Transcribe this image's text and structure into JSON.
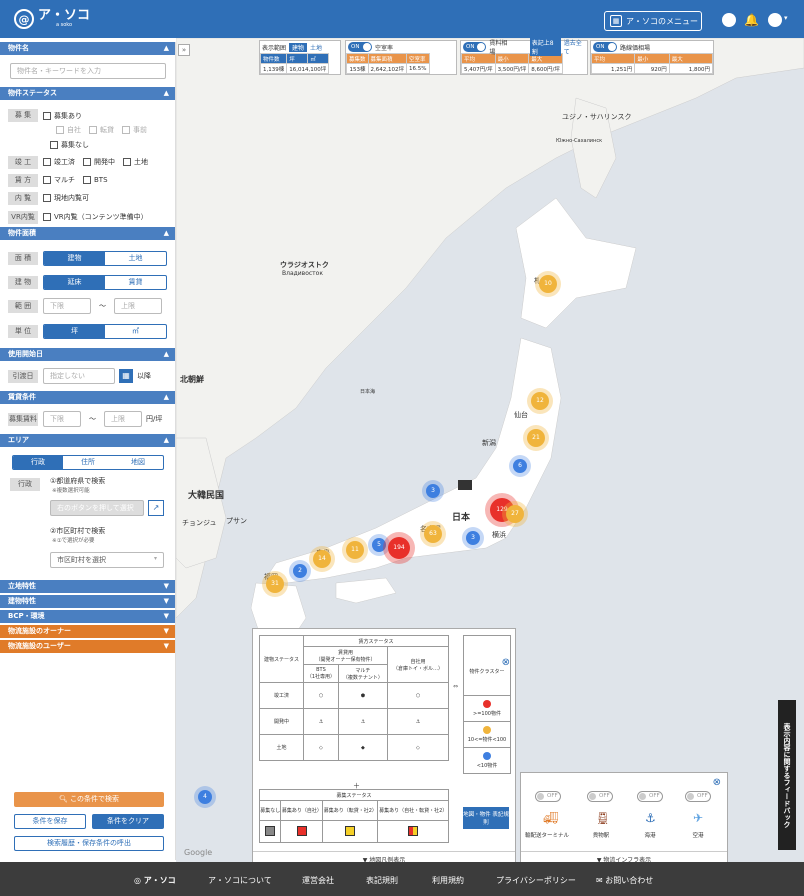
{
  "header": {
    "logo_mark": "@",
    "logo_text": "ア・ソコ",
    "logo_sub": "a soko",
    "menu_button": "ア・ソコのメニュー"
  },
  "sidebar": {
    "property_name": {
      "title": "物件名",
      "placeholder": "物件名・キーワードを入力"
    },
    "status": {
      "title": "物件ステータス",
      "recruit": {
        "label": "募 集",
        "option": "募集あり",
        "sub": [
          "自社",
          "転貸",
          "事前"
        ],
        "none": "募集なし"
      },
      "construction": {
        "label": "竣 工",
        "options": [
          "竣工済",
          "開発中",
          "土地"
        ]
      },
      "lease": {
        "label": "賃 方",
        "options": [
          "マルチ",
          "BTS"
        ]
      },
      "preview": {
        "label": "内 覧",
        "option": "現地内覧可"
      },
      "vr": {
        "label": "VR内覧",
        "option": "VR内覧（コンテンツ準備中）"
      }
    },
    "area_size": {
      "title": "物件面積",
      "area": {
        "label": "面 積",
        "options": [
          "建物",
          "土地"
        ]
      },
      "building": {
        "label": "建 物",
        "options": [
          "延床",
          "賃貸"
        ]
      },
      "range": {
        "label": "範 囲",
        "min": "下限",
        "max": "上限",
        "sep": "〜"
      },
      "unit": {
        "label": "単 位",
        "options": [
          "坪",
          "㎡"
        ]
      }
    },
    "date": {
      "title": "使用開始日",
      "label": "引渡日",
      "placeholder": "指定しない",
      "suffix": "以降"
    },
    "price": {
      "title": "賃貸条件",
      "label": "募集賃料",
      "min": "下限",
      "max": "上限",
      "sep": "〜",
      "unit": "円/坪"
    },
    "area": {
      "title": "エリア",
      "tabs": [
        "行政",
        "住所",
        "地図"
      ],
      "label": "行政",
      "pref": {
        "title": "①都道府県で検索",
        "note": "※複数選択可能",
        "button": "右のボタンを押して選択"
      },
      "city": {
        "title": "②市区町村で検索",
        "note": "※①で選択が必要",
        "placeholder": "市区町村を選択"
      }
    },
    "collapsed": [
      {
        "title": "立地特性",
        "color": "blue"
      },
      {
        "title": "建物特性",
        "color": "blue"
      },
      {
        "title": "BCP・環境",
        "color": "blue"
      },
      {
        "title": "物流施設のオーナー",
        "color": "orange"
      },
      {
        "title": "物流施設のユーザー",
        "color": "orange"
      }
    ],
    "buttons": {
      "search": "この条件で検索",
      "save": "条件を保存",
      "clear": "条件をクリア",
      "history": "検索履歴・保存条件の呼出"
    }
  },
  "map": {
    "stats": {
      "count": {
        "label": "表示範囲",
        "tabs": [
          "建物",
          "土地"
        ],
        "cols": [
          "物件数",
          "坪",
          "㎡"
        ],
        "values": [
          "1,139棟",
          "16,014,100坪"
        ]
      },
      "vacancy": {
        "toggle": "ON",
        "title": "空室率",
        "cols": [
          "募集数",
          "募集面積",
          "空室率"
        ],
        "values": [
          "153棟",
          "2,642,102坪",
          "16.5%"
        ]
      },
      "rent": {
        "toggle": "ON",
        "title": "賃料相場",
        "badges": [
          "表記上8割",
          "過去全て"
        ],
        "cols": [
          "平均",
          "最小",
          "最大"
        ],
        "values": [
          "5,407円/坪",
          "3,500円/坪",
          "8,600円/坪"
        ]
      },
      "land": {
        "toggle": "ON",
        "title": "路線価相場",
        "cols": [
          "平均",
          "最小",
          "最大"
        ],
        "values": [
          "1,251円",
          "920円",
          "1,800円"
        ]
      }
    },
    "places": [
      "ユジノ・サハリンスク",
      "Южно-Сахалинск",
      "ウラジオストク",
      "Владивосток",
      "日本海",
      "大韓民国",
      "北朝鮮",
      "日本",
      "名古屋",
      "横浜",
      "新潟",
      "仙台",
      "札幌",
      "広島",
      "福岡",
      "プサン",
      "チョンジュ"
    ],
    "clusters": [
      {
        "label": "10",
        "tier": "mid"
      },
      {
        "label": "12",
        "tier": "mid"
      },
      {
        "label": "21",
        "tier": "mid"
      },
      {
        "label": "6",
        "tier": "low"
      },
      {
        "label": "3",
        "tier": "low"
      },
      {
        "label": "129",
        "tier": "high"
      },
      {
        "label": "27",
        "tier": "mid"
      },
      {
        "label": "3",
        "tier": "low"
      },
      {
        "label": "63",
        "tier": "mid"
      },
      {
        "label": "5",
        "tier": "low"
      },
      {
        "label": "194",
        "tier": "high"
      },
      {
        "label": "11",
        "tier": "mid"
      },
      {
        "label": "14",
        "tier": "mid"
      },
      {
        "label": "2",
        "tier": "low"
      },
      {
        "label": "31",
        "tier": "mid"
      },
      {
        "label": "4",
        "tier": "low"
      }
    ],
    "google": "Google",
    "legend": {
      "title": "賃方ステータス",
      "col1": "建物ステータス",
      "group1": "賃貸用",
      "group1_sub": "（開発オーナー保有物件）",
      "group3": "自社用",
      "group3_sub": "（倉庫トイ・ボル…）",
      "bts": "BTS",
      "bts_sub": "（1社専用）",
      "multi": "マルチ",
      "multi_sub": "（複数テナント）",
      "rows": [
        "竣工済",
        "開発中",
        "土地"
      ],
      "cluster_title": "物件クラスター",
      "cluster_items": [
        ">=100物件",
        "10<=物件<100",
        "<10物件"
      ],
      "plus": "＋",
      "recruit_title": "募集ステータス",
      "recruit_cols": [
        "募集なし",
        "募集あり（自社）",
        "募集あり（転貸・社2）",
        "募集あり（自社・転貸・社2）"
      ],
      "link": "地図・物件 表記規則",
      "toggle": "地図凡例表示"
    },
    "infra": {
      "toggles": [
        "OFF",
        "OFF",
        "OFF",
        "OFF"
      ],
      "items": [
        "輸配送ターミナル",
        "貨物駅",
        "海港",
        "空港"
      ],
      "toggle": "物流インフラ表示"
    },
    "feedback": "表示内容に関するフィードバック",
    "colors": {
      "high": "#e8302a",
      "mid": "#f0b43c",
      "low": "#3e7fe0"
    }
  },
  "footer": {
    "logo": "ア・ソコ",
    "links": [
      "ア・ソコについて",
      "運営会社",
      "表記規則",
      "利用規約",
      "プライバシーポリシー",
      "お問い合わせ"
    ]
  }
}
